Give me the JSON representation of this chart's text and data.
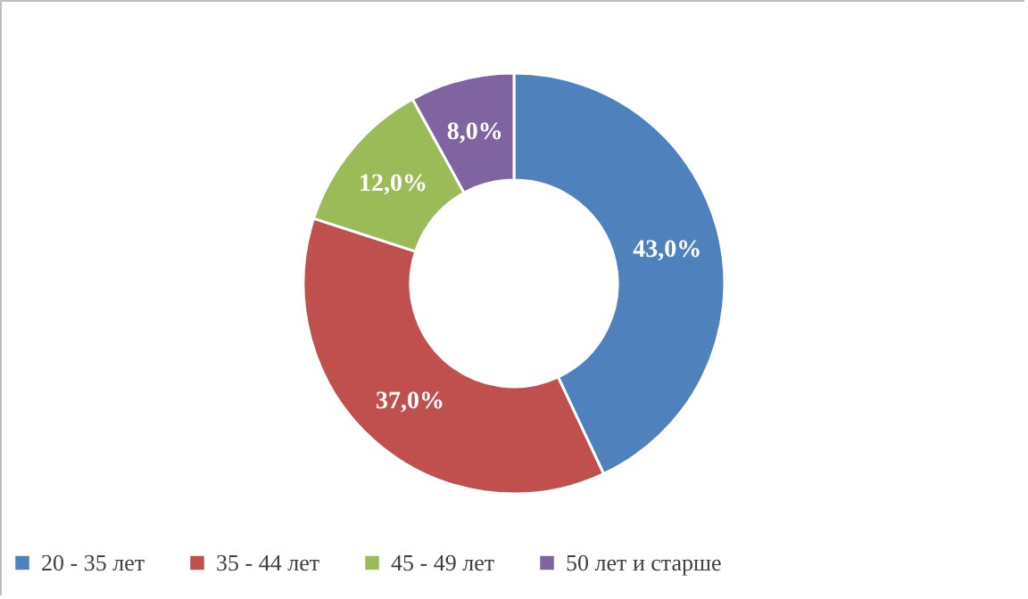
{
  "chart_data": {
    "type": "donut",
    "categories": [
      "20 - 35 лет",
      "35 - 44 лет",
      "45 - 49 лет",
      "50 лет и старше"
    ],
    "values": [
      43,
      37,
      12,
      8
    ],
    "value_labels": [
      "43,0%",
      "37,0%",
      "12,0%",
      "8,0%"
    ],
    "colors": [
      "#4f81bd",
      "#c0504d",
      "#9bbb59",
      "#8064a2"
    ],
    "legend": "bottom"
  }
}
